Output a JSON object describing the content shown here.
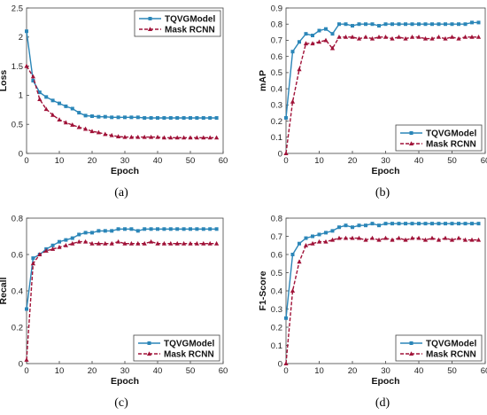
{
  "colors": {
    "TQVGModel": "#2b86b8",
    "Mask RCNN": "#a01238"
  },
  "chart_data": [
    {
      "type": "line",
      "caption": "(a)",
      "xlabel": "Epoch",
      "ylabel": "Loss",
      "xlim": [
        0,
        60
      ],
      "ylim": [
        0,
        2.5
      ],
      "xticks": [
        0,
        10,
        20,
        30,
        40,
        50,
        60
      ],
      "yticks": [
        "0",
        "0.5",
        "1",
        "1.5",
        "2",
        "2.5"
      ],
      "legend_position": "top-right",
      "series": [
        {
          "name": "TQVGModel",
          "marker": "square",
          "line": "solid",
          "x": [
            0,
            2,
            4,
            6,
            8,
            10,
            12,
            14,
            16,
            18,
            20,
            22,
            24,
            26,
            28,
            30,
            32,
            34,
            36,
            38,
            40,
            42,
            44,
            46,
            48,
            50,
            52,
            54,
            56,
            58
          ],
          "y": [
            2.1,
            1.25,
            1.05,
            0.97,
            0.91,
            0.86,
            0.81,
            0.77,
            0.7,
            0.65,
            0.64,
            0.63,
            0.63,
            0.62,
            0.62,
            0.62,
            0.62,
            0.62,
            0.61,
            0.61,
            0.61,
            0.61,
            0.61,
            0.61,
            0.61,
            0.61,
            0.61,
            0.61,
            0.61,
            0.61
          ]
        },
        {
          "name": "Mask RCNN",
          "marker": "triangle",
          "line": "dashed",
          "x": [
            0,
            2,
            4,
            6,
            8,
            10,
            12,
            14,
            16,
            18,
            20,
            22,
            24,
            26,
            28,
            30,
            32,
            34,
            36,
            38,
            40,
            42,
            44,
            46,
            48,
            50,
            52,
            54,
            56,
            58
          ],
          "y": [
            1.5,
            1.32,
            0.93,
            0.76,
            0.66,
            0.58,
            0.53,
            0.49,
            0.45,
            0.42,
            0.38,
            0.36,
            0.33,
            0.31,
            0.29,
            0.28,
            0.28,
            0.28,
            0.28,
            0.28,
            0.28,
            0.27,
            0.27,
            0.27,
            0.27,
            0.27,
            0.27,
            0.27,
            0.27,
            0.27
          ]
        }
      ]
    },
    {
      "type": "line",
      "caption": "(b)",
      "xlabel": "Epoch",
      "ylabel": "mAP",
      "xlim": [
        0,
        60
      ],
      "ylim": [
        0,
        0.9
      ],
      "xticks": [
        0,
        10,
        20,
        30,
        40,
        50,
        60
      ],
      "yticks": [
        "0",
        "0.1",
        "0.2",
        "0.3",
        "0.4",
        "0.5",
        "0.6",
        "0.7",
        "0.8",
        "0.9"
      ],
      "legend_position": "bottom-right",
      "series": [
        {
          "name": "TQVGModel",
          "marker": "square",
          "line": "solid",
          "x": [
            0,
            2,
            4,
            6,
            8,
            10,
            12,
            14,
            16,
            18,
            20,
            22,
            24,
            26,
            28,
            30,
            32,
            34,
            36,
            38,
            40,
            42,
            44,
            46,
            48,
            50,
            52,
            54,
            56,
            58
          ],
          "y": [
            0.22,
            0.63,
            0.69,
            0.74,
            0.73,
            0.76,
            0.77,
            0.74,
            0.8,
            0.8,
            0.79,
            0.8,
            0.8,
            0.8,
            0.79,
            0.8,
            0.8,
            0.8,
            0.8,
            0.8,
            0.8,
            0.8,
            0.8,
            0.8,
            0.8,
            0.8,
            0.8,
            0.8,
            0.81,
            0.81
          ]
        },
        {
          "name": "Mask RCNN",
          "marker": "triangle",
          "line": "dashed",
          "x": [
            0,
            2,
            4,
            6,
            8,
            10,
            12,
            14,
            16,
            18,
            20,
            22,
            24,
            26,
            28,
            30,
            32,
            34,
            36,
            38,
            40,
            42,
            44,
            46,
            48,
            50,
            52,
            54,
            56,
            58
          ],
          "y": [
            0.0,
            0.32,
            0.52,
            0.68,
            0.68,
            0.69,
            0.7,
            0.65,
            0.72,
            0.72,
            0.72,
            0.71,
            0.72,
            0.71,
            0.72,
            0.72,
            0.71,
            0.72,
            0.71,
            0.72,
            0.72,
            0.71,
            0.71,
            0.72,
            0.71,
            0.72,
            0.71,
            0.72,
            0.72,
            0.72
          ]
        }
      ]
    },
    {
      "type": "line",
      "caption": "(c)",
      "xlabel": "Epoch",
      "ylabel": "Recall",
      "xlim": [
        0,
        60
      ],
      "ylim": [
        0,
        0.8
      ],
      "xticks": [
        0,
        10,
        20,
        30,
        40,
        50,
        60
      ],
      "yticks": [
        "0",
        "0.2",
        "0.4",
        "0.6",
        "0.8"
      ],
      "legend_position": "bottom-right",
      "series": [
        {
          "name": "TQVGModel",
          "marker": "square",
          "line": "solid",
          "x": [
            0,
            2,
            4,
            6,
            8,
            10,
            12,
            14,
            16,
            18,
            20,
            22,
            24,
            26,
            28,
            30,
            32,
            34,
            36,
            38,
            40,
            42,
            44,
            46,
            48,
            50,
            52,
            54,
            56,
            58
          ],
          "y": [
            0.3,
            0.58,
            0.6,
            0.63,
            0.65,
            0.67,
            0.68,
            0.69,
            0.71,
            0.72,
            0.72,
            0.73,
            0.73,
            0.73,
            0.74,
            0.74,
            0.74,
            0.73,
            0.74,
            0.74,
            0.74,
            0.74,
            0.74,
            0.74,
            0.74,
            0.74,
            0.74,
            0.74,
            0.74,
            0.74
          ]
        },
        {
          "name": "Mask RCNN",
          "marker": "triangle",
          "line": "dashed",
          "x": [
            0,
            2,
            4,
            6,
            8,
            10,
            12,
            14,
            16,
            18,
            20,
            22,
            24,
            26,
            28,
            30,
            32,
            34,
            36,
            38,
            40,
            42,
            44,
            46,
            48,
            50,
            52,
            54,
            56,
            58
          ],
          "y": [
            0.02,
            0.55,
            0.6,
            0.62,
            0.63,
            0.64,
            0.65,
            0.66,
            0.67,
            0.67,
            0.66,
            0.66,
            0.66,
            0.66,
            0.67,
            0.66,
            0.66,
            0.66,
            0.66,
            0.67,
            0.66,
            0.66,
            0.66,
            0.66,
            0.66,
            0.66,
            0.66,
            0.66,
            0.66,
            0.66
          ]
        }
      ]
    },
    {
      "type": "line",
      "caption": "(d)",
      "xlabel": "Epoch",
      "ylabel": "F1-Score",
      "xlim": [
        0,
        60
      ],
      "ylim": [
        0,
        0.8
      ],
      "xticks": [
        0,
        10,
        20,
        30,
        40,
        50,
        60
      ],
      "yticks": [
        "0",
        "0.1",
        "0.2",
        "0.3",
        "0.4",
        "0.5",
        "0.6",
        "0.7",
        "0.8"
      ],
      "legend_position": "bottom-right",
      "series": [
        {
          "name": "TQVGModel",
          "marker": "square",
          "line": "solid",
          "x": [
            0,
            2,
            4,
            6,
            8,
            10,
            12,
            14,
            16,
            18,
            20,
            22,
            24,
            26,
            28,
            30,
            32,
            34,
            36,
            38,
            40,
            42,
            44,
            46,
            48,
            50,
            52,
            54,
            56,
            58
          ],
          "y": [
            0.25,
            0.6,
            0.66,
            0.69,
            0.7,
            0.71,
            0.72,
            0.73,
            0.75,
            0.76,
            0.75,
            0.76,
            0.76,
            0.77,
            0.76,
            0.77,
            0.77,
            0.77,
            0.77,
            0.77,
            0.77,
            0.77,
            0.77,
            0.77,
            0.77,
            0.77,
            0.77,
            0.77,
            0.77,
            0.77
          ]
        },
        {
          "name": "Mask RCNN",
          "marker": "triangle",
          "line": "dashed",
          "x": [
            0,
            2,
            4,
            6,
            8,
            10,
            12,
            14,
            16,
            18,
            20,
            22,
            24,
            26,
            28,
            30,
            32,
            34,
            36,
            38,
            40,
            42,
            44,
            46,
            48,
            50,
            52,
            54,
            56,
            58
          ],
          "y": [
            0.0,
            0.4,
            0.56,
            0.65,
            0.66,
            0.67,
            0.67,
            0.68,
            0.69,
            0.69,
            0.69,
            0.69,
            0.68,
            0.69,
            0.68,
            0.69,
            0.68,
            0.69,
            0.68,
            0.69,
            0.69,
            0.68,
            0.69,
            0.68,
            0.69,
            0.68,
            0.69,
            0.68,
            0.68,
            0.68
          ]
        }
      ]
    }
  ]
}
